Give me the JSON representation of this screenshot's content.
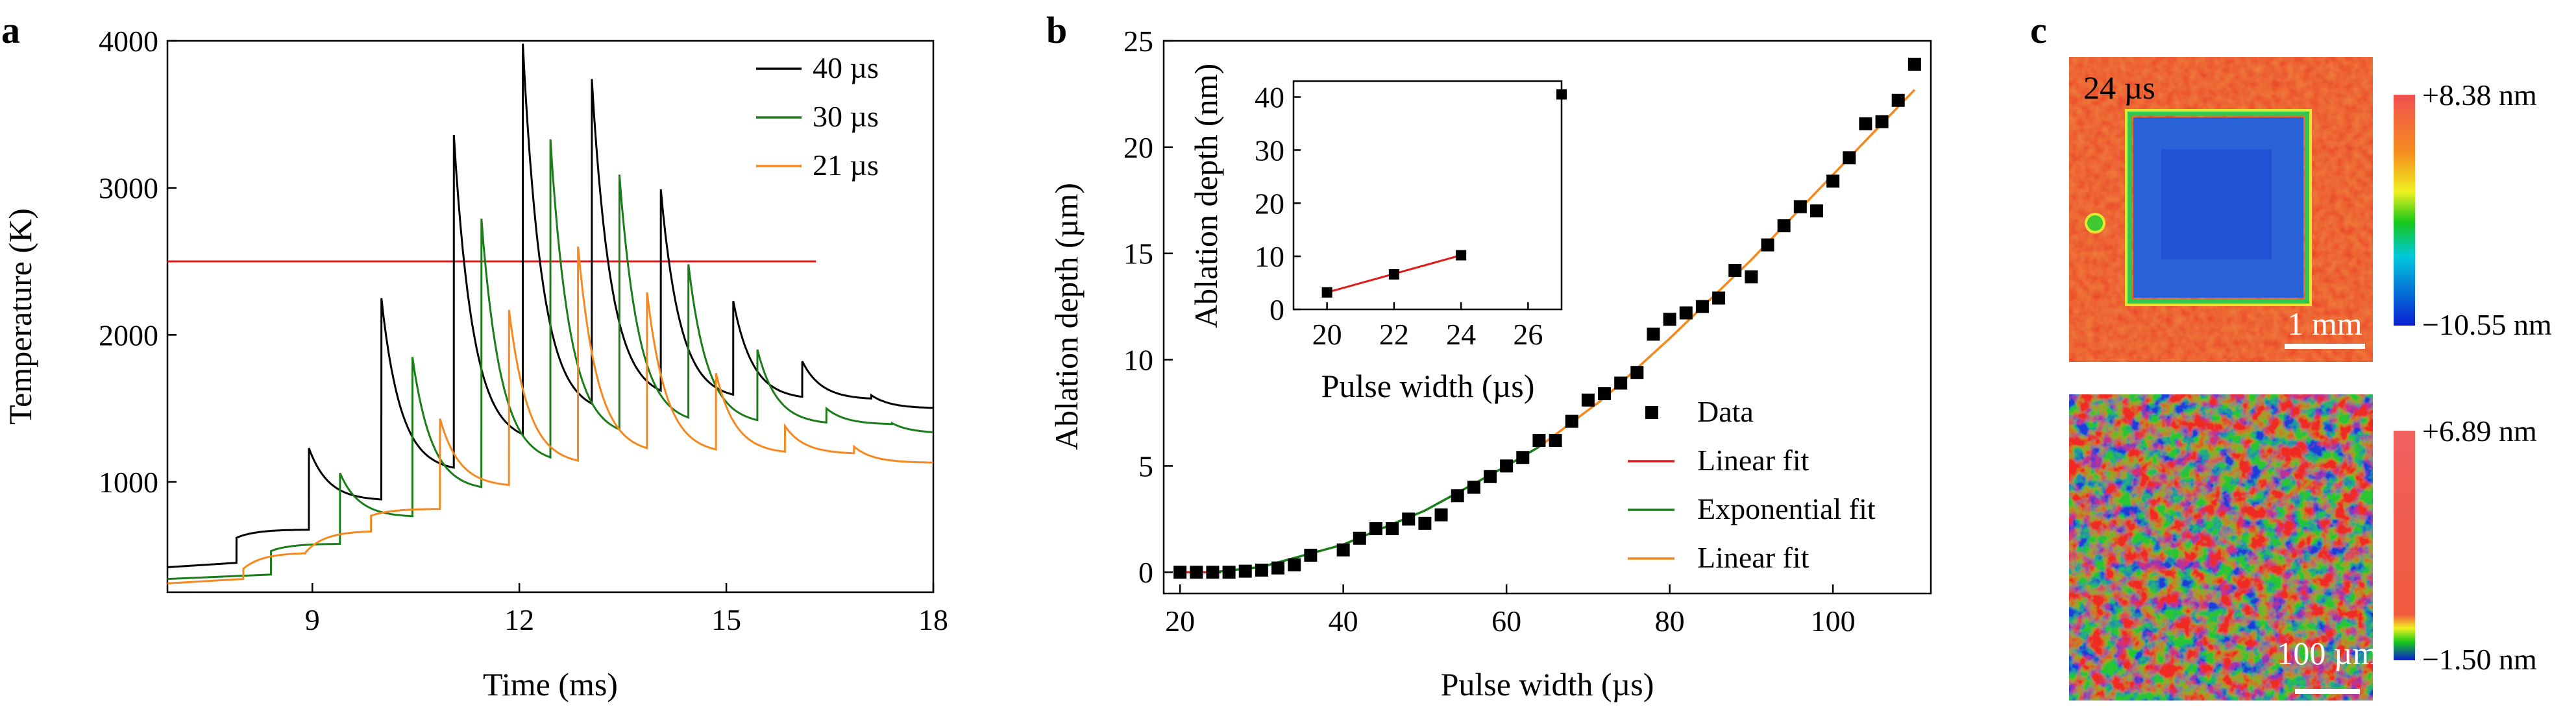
{
  "panels": {
    "a": {
      "label": "a",
      "chart_data": {
        "type": "line",
        "xlabel": "Time (ms)",
        "ylabel": "Temperature (K)",
        "xlim": [
          6.9,
          18
        ],
        "ylim": [
          250,
          4000
        ],
        "xticks": [
          "9",
          "12",
          "15",
          "18"
        ],
        "yticks": [
          "1000",
          "2000",
          "3000",
          "4000"
        ],
        "legend_position": "top-right",
        "colors": {
          "40us": "#000000",
          "30us": "#1a7d1a",
          "21us": "#f5891f",
          "threshold": "#e11919"
        },
        "threshold": {
          "y": 2500,
          "x": [
            6.9,
            16.3
          ]
        },
        "series": [
          {
            "name": "40 µs",
            "color": "#000000",
            "pulses": [
              [
                7.9,
                620
              ],
              [
                8.95,
                1230
              ],
              [
                10.0,
                2250
              ],
              [
                11.05,
                3360
              ],
              [
                12.05,
                3980
              ],
              [
                13.05,
                3740
              ],
              [
                14.05,
                2990
              ],
              [
                15.1,
                2230
              ],
              [
                16.1,
                1820
              ],
              [
                17.1,
                1590
              ]
            ],
            "start": 420,
            "end": 1500
          },
          {
            "name": "30 µs",
            "color": "#1a7d1a",
            "pulses": [
              [
                8.4,
                530
              ],
              [
                9.4,
                1060
              ],
              [
                10.45,
                1850
              ],
              [
                11.45,
                2790
              ],
              [
                12.45,
                3330
              ],
              [
                13.45,
                3090
              ],
              [
                14.45,
                2480
              ],
              [
                15.45,
                1900
              ],
              [
                16.45,
                1500
              ],
              [
                17.4,
                1400
              ]
            ],
            "start": 340,
            "end": 1330
          },
          {
            "name": "21 µs",
            "color": "#f5891f",
            "pulses": [
              [
                8.0,
                410
              ],
              [
                8.9,
                520
              ],
              [
                9.85,
                770
              ],
              [
                10.85,
                1430
              ],
              [
                11.85,
                2170
              ],
              [
                12.85,
                2600
              ],
              [
                13.85,
                2290
              ],
              [
                14.85,
                1740
              ],
              [
                15.85,
                1380
              ],
              [
                16.85,
                1240
              ]
            ],
            "start": 310,
            "end": 1130
          }
        ]
      }
    },
    "b": {
      "label": "b",
      "chart_data": {
        "type": "scatter",
        "xlabel": "Pulse width (µs)",
        "ylabel": "Ablation depth (µm)",
        "xlim": [
          18,
          112
        ],
        "ylim": [
          -1,
          25
        ],
        "xticks": [
          "20",
          "40",
          "60",
          "80",
          "100"
        ],
        "yticks": [
          "0",
          "5",
          "10",
          "15",
          "20",
          "25"
        ],
        "legend_position": "bottom-right",
        "series": [
          {
            "name": "Data",
            "color": "#000000",
            "x": [
              20,
              22,
              24,
              26,
              28,
              30,
              32,
              34,
              36,
              40,
              42,
              44,
              46,
              48,
              50,
              52,
              54,
              56,
              58,
              60,
              62,
              64,
              66,
              68,
              70,
              72,
              74,
              76,
              78,
              80,
              82,
              84,
              86,
              88,
              90,
              92,
              94,
              96,
              98,
              100,
              102,
              104,
              106,
              108,
              110
            ],
            "y": [
              0.0,
              0.0,
              0.0,
              0.0,
              0.05,
              0.1,
              0.2,
              0.35,
              0.8,
              1.05,
              1.6,
              2.05,
              2.05,
              2.5,
              2.3,
              2.7,
              3.6,
              4.0,
              4.5,
              5.0,
              5.4,
              6.2,
              6.2,
              7.1,
              8.1,
              8.4,
              8.9,
              9.4,
              11.2,
              11.9,
              12.2,
              12.5,
              12.9,
              14.2,
              13.9,
              15.4,
              16.3,
              17.2,
              17.0,
              18.4,
              19.5,
              21.1,
              21.2,
              22.2,
              23.9
            ]
          },
          {
            "name": "Linear fit",
            "color": "#e11919",
            "x": [
              20,
              25
            ],
            "y": [
              0.0,
              0.0
            ]
          },
          {
            "name": "Exponential fit",
            "color": "#1a7d1a",
            "x": [
              24,
              30,
              40,
              50,
              60,
              64
            ],
            "y": [
              0.0,
              0.25,
              1.3,
              2.9,
              5.0,
              5.9
            ]
          },
          {
            "name": "Linear fit",
            "color": "#f5891f",
            "x": [
              64,
              72,
              80,
              90,
              100,
              110
            ],
            "y": [
              5.9,
              8.2,
              11.0,
              14.7,
              18.7,
              22.7
            ]
          }
        ],
        "inset": {
          "xlabel": "Pulse width (µs)",
          "ylabel": "Ablation depth (nm)",
          "xlim": [
            19,
            27
          ],
          "ylim": [
            0,
            43
          ],
          "xticks": [
            "20",
            "22",
            "24",
            "26"
          ],
          "yticks": [
            "0",
            "10",
            "20",
            "30",
            "40"
          ],
          "data": {
            "x": [
              20,
              22,
              24,
              27
            ],
            "y": [
              3.2,
              6.6,
              10.2,
              40.5
            ]
          },
          "fit": {
            "x": [
              20,
              24
            ],
            "y": [
              3.2,
              10.2
            ],
            "color": "#e11919"
          }
        }
      }
    },
    "c": {
      "label": "c",
      "top": {
        "annotation": "24 µs",
        "scalebar": "1 mm",
        "cbar_max": "+8.38 nm",
        "cbar_min": "−10.55 nm"
      },
      "bottom": {
        "scalebar": "100 µm",
        "cbar_max": "+6.89 nm",
        "cbar_min": "−1.50 nm"
      }
    }
  }
}
